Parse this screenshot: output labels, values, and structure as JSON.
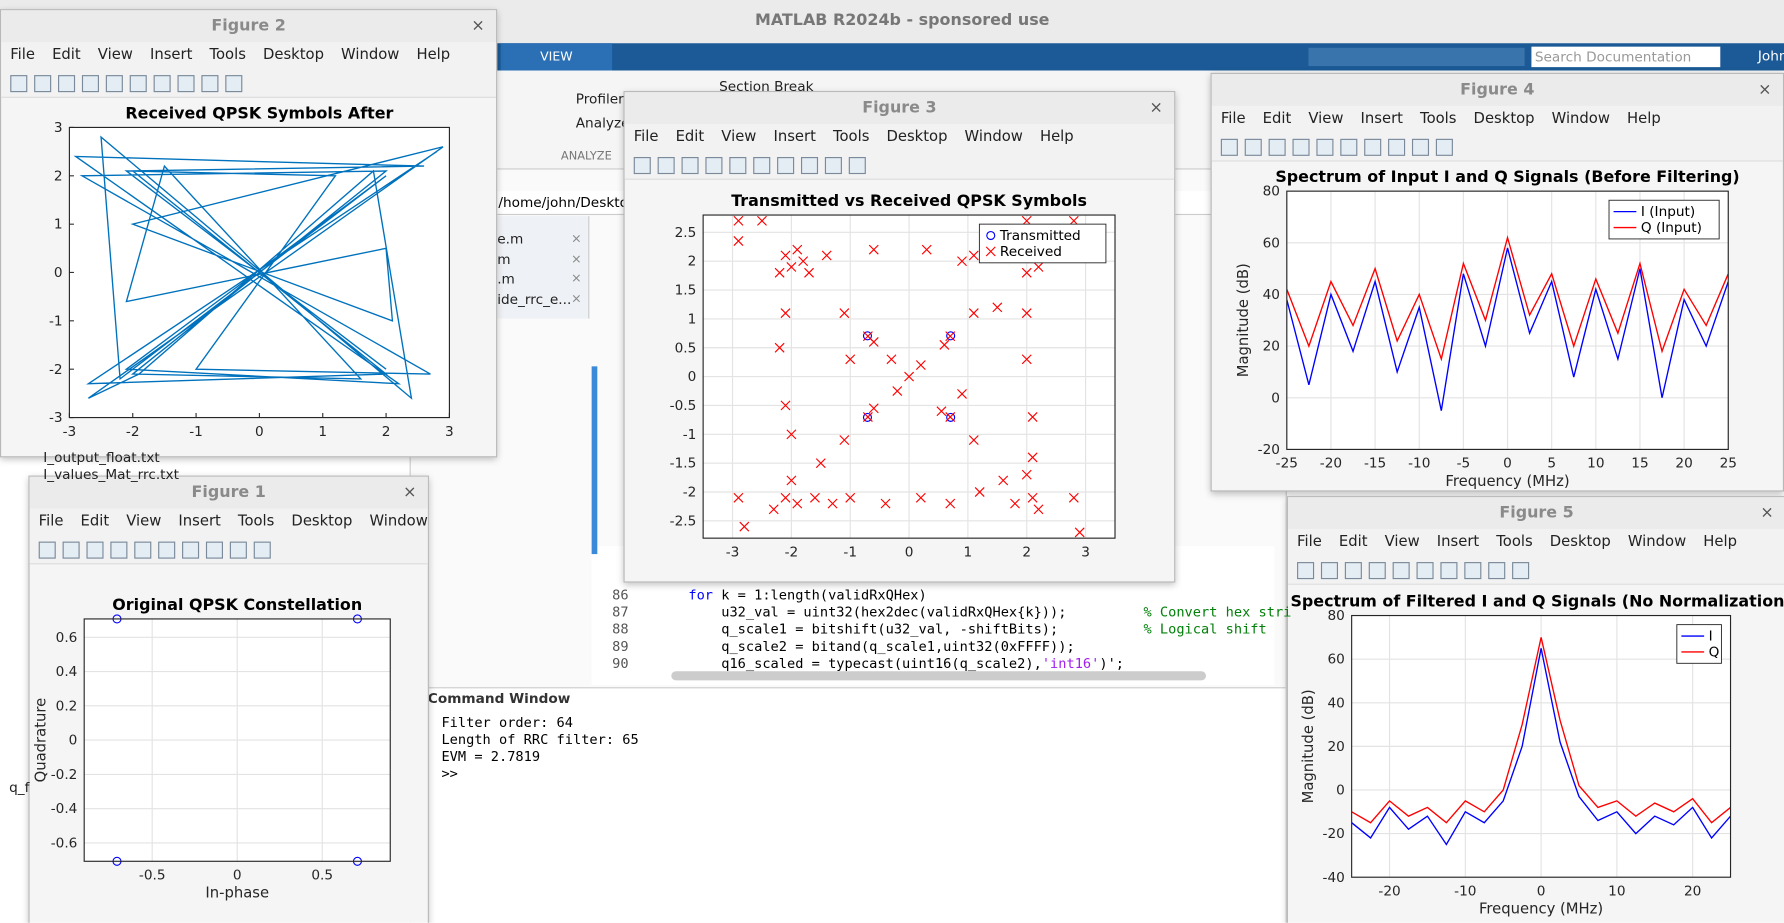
{
  "app": {
    "title": "MATLAB R2024b - sponsored use",
    "tab": "VIEW",
    "search_placeholder": "Search Documentation",
    "user": "John",
    "section_break": "Section Break",
    "profiler": "Profiler",
    "analyze": "Analyze",
    "group_label": "ANALYZE",
    "path": "/home/john/Deskto"
  },
  "file_tabs": [
    "e.m",
    "m",
    ".m",
    "ide_rrc_e..."
  ],
  "files": [
    "I_output_float.txt",
    "I_values_Mat_rrc.txt",
    "q_f"
  ],
  "editor": {
    "lines": [
      {
        "num": "86",
        "tokens": [
          {
            "t": "for",
            "k": "keyword"
          },
          {
            "t": " k = 1:length(validRxQHex)",
            "k": "code"
          }
        ]
      },
      {
        "num": "87",
        "tokens": [
          {
            "t": "    u32_val = uint32(hex2dec(validRxQHex{k}));",
            "k": "code"
          }
        ],
        "comment": "% Convert hex stri"
      },
      {
        "num": "88",
        "tokens": [
          {
            "t": "    q_scale1 = bitshift(u32_val, -shiftBits);",
            "k": "code"
          }
        ],
        "comment": "% Logical shift"
      },
      {
        "num": "89",
        "tokens": [
          {
            "t": "    q_scale2 = bitand(q_scale1,uint32(0xFFFF));",
            "k": "code"
          }
        ]
      },
      {
        "num": "90",
        "tokens": [
          {
            "t": "    q16_scaled = typecast(uint16(q_scale2),",
            "k": "code"
          },
          {
            "t": "'int16'",
            "k": "string"
          },
          {
            "t": ")';",
            "k": "code"
          }
        ]
      }
    ]
  },
  "command_window": {
    "title": "Command Window",
    "lines": [
      "Filter order: 64",
      "Length of RRC filter: 65",
      "EVM = 2.7819"
    ],
    "prompt": ">>"
  },
  "menu": [
    "File",
    "Edit",
    "View",
    "Insert",
    "Tools",
    "Desktop",
    "Window",
    "Help"
  ],
  "figures": [
    {
      "window_title": "Figure 1",
      "chart": {
        "type": "scatter",
        "title": "Original QPSK Constellation",
        "x_label": "In-phase",
        "y_label": "Quadrature",
        "xlim": [
          -0.9,
          0.9
        ],
        "ylim": [
          -0.7071,
          0.7071
        ],
        "xticks": [
          -0.5,
          0,
          0.5
        ],
        "yticks": [
          -0.6,
          -0.4,
          -0.2,
          0,
          0.2,
          0.4,
          0.6
        ],
        "grid": true,
        "series": [
          {
            "color": "#0000ff",
            "marker": "o",
            "x": [
              -0.7071,
              -0.7071,
              0.7071,
              0.7071
            ],
            "values": [
              0.7071,
              -0.7071,
              0.7071,
              -0.7071
            ]
          }
        ]
      }
    },
    {
      "window_title": "Figure 2",
      "chart": {
        "type": "line",
        "title": "Received QPSK Symbols After",
        "xlim": [
          -3,
          3
        ],
        "ylim": [
          -3,
          3
        ],
        "xticks": [
          -3,
          -2,
          -1,
          0,
          1,
          2,
          3
        ],
        "yticks": [
          -3,
          -2,
          -1,
          0,
          1,
          2,
          3
        ],
        "grid": false,
        "x": [
          2.8,
          -2.7,
          2.0,
          -2.0,
          2.6,
          -2.9,
          2.2,
          -2.1,
          2.0,
          -2.2,
          -2.5,
          2.4,
          1.8,
          -1.9,
          -2.7,
          2.9,
          -2.0,
          2.1,
          2.0,
          -2.1,
          -1.5,
          1.6,
          -2.0,
          2.0,
          -2.8,
          2.7,
          -1.0,
          1.2,
          -2.1,
          2.0
        ],
        "series": [
          {
            "color": "#0072bd",
            "values": [
              2.5,
              -2.3,
              -2.1,
              2.1,
              2.2,
              2.4,
              -2.3,
              -2.0,
              2.0,
              -2.2,
              2.8,
              -2.6,
              2.1,
              -2.1,
              -2.6,
              2.6,
              1.0,
              -1.0,
              0.5,
              -0.6,
              2.2,
              -2.2,
              -2.1,
              2.1,
              2.0,
              -2.1,
              -2.0,
              2.0,
              2.1,
              -2.0
            ]
          }
        ]
      }
    },
    {
      "window_title": "Figure 3",
      "chart": {
        "type": "scatter",
        "title": "Transmitted vs Received QPSK Symbols",
        "xlim": [
          -3.5,
          3.5
        ],
        "ylim": [
          -2.8,
          2.8
        ],
        "xticks": [
          -3,
          -2,
          -1,
          0,
          1,
          2,
          3
        ],
        "yticks": [
          -2.5,
          -2,
          -1.5,
          -1,
          -0.5,
          0,
          0.5,
          1,
          1.5,
          2,
          2.5
        ],
        "grid": true,
        "legend": "northeast",
        "series": [
          {
            "name": "Transmitted",
            "color": "#0000ff",
            "marker": "o",
            "x": [
              -0.7071,
              0.7071,
              -0.7071,
              0.7071
            ],
            "values": [
              0.7071,
              0.7071,
              -0.7071,
              -0.7071
            ]
          },
          {
            "name": "Received",
            "color": "#ff0000",
            "marker": "x",
            "x": [
              -2.1,
              -1.9,
              -2.0,
              -2.2,
              -1.8,
              -1.4,
              -1.7,
              -2.9,
              -2.9,
              -2.5,
              2.1,
              1.9,
              2.0,
              2.2,
              1.1,
              0.9,
              0.3,
              -0.6,
              2.8,
              2.0,
              -2.1,
              -1.9,
              -2.0,
              -1.6,
              -1.3,
              -2.8,
              -2.9,
              -2.3,
              -1.0,
              -0.4,
              2.1,
              1.8,
              2.0,
              2.2,
              1.2,
              0.7,
              2.8,
              2.9,
              0.2,
              1.6,
              -0.7,
              -0.6,
              0.7,
              0.6,
              -0.7,
              -0.6,
              0.7,
              0.55,
              -0.3,
              0,
              0.2,
              -0.2,
              -1.1,
              1.1,
              -1.1,
              1.1,
              -1.5,
              1.5,
              -2.1,
              -2.1,
              -2.0,
              -2.2,
              2.0,
              2.1,
              2.0,
              2.1,
              -1.0,
              0.9
            ],
            "values": [
              2.1,
              2.2,
              1.9,
              1.8,
              2.0,
              2.1,
              1.8,
              2.7,
              2.35,
              2.7,
              2.1,
              2.2,
              1.8,
              1.9,
              2.1,
              2.0,
              2.2,
              2.2,
              2.7,
              2.7,
              -2.1,
              -2.2,
              -1.8,
              -2.1,
              -2.2,
              -2.6,
              -2.1,
              -2.3,
              -2.1,
              -2.2,
              -2.1,
              -2.2,
              -1.7,
              -2.3,
              -2.0,
              -2.2,
              -2.1,
              -2.7,
              -2.1,
              -1.8,
              0.7,
              0.6,
              0.7,
              0.55,
              -0.7,
              -0.55,
              -0.7,
              -0.6,
              0.3,
              0,
              0.2,
              -0.25,
              -1.1,
              -1.1,
              1.1,
              1.1,
              -1.5,
              1.2,
              1.1,
              -0.5,
              -1.0,
              0.5,
              1.1,
              -0.7,
              0.3,
              -1.4,
              0.3,
              -0.3
            ]
          }
        ]
      }
    },
    {
      "window_title": "Figure 4",
      "chart": {
        "type": "line",
        "title": "Spectrum of Input I and Q Signals (Before Filtering)",
        "x_label": "Frequency (MHz)",
        "y_label": "Magnitude (dB)",
        "xlim": [
          -25,
          25
        ],
        "ylim": [
          -20,
          80
        ],
        "xticks": [
          -25,
          -20,
          -15,
          -10,
          -5,
          0,
          5,
          10,
          15,
          20,
          25
        ],
        "yticks": [
          -20,
          0,
          20,
          40,
          60,
          80
        ],
        "grid": true,
        "legend": "northeast",
        "x": [
          -25,
          -22.5,
          -20,
          -17.5,
          -15,
          -12.5,
          -10,
          -7.5,
          -5,
          -2.5,
          0,
          2.5,
          5,
          7.5,
          10,
          12.5,
          15,
          17.5,
          20,
          22.5,
          25
        ],
        "series": [
          {
            "name": "I (Input)",
            "color": "#0000ff",
            "values": [
              38,
              5,
              40,
              18,
              45,
              10,
              35,
              -5,
              48,
              20,
              58,
              25,
              45,
              8,
              42,
              15,
              50,
              0,
              38,
              20,
              45
            ]
          },
          {
            "name": "Q (Input)",
            "color": "#ff0000",
            "values": [
              42,
              20,
              45,
              28,
              50,
              22,
              40,
              15,
              52,
              30,
              62,
              32,
              48,
              20,
              46,
              25,
              52,
              18,
              42,
              28,
              48
            ]
          }
        ]
      }
    },
    {
      "window_title": "Figure 5",
      "chart": {
        "type": "line",
        "title": "Spectrum of Filtered I and Q Signals (No Normalization)",
        "x_label": "Frequency (MHz)",
        "y_label": "Magnitude (dB)",
        "xlim": [
          -25,
          25
        ],
        "ylim": [
          -40,
          80
        ],
        "xticks": [
          -20,
          -10,
          0,
          10,
          20
        ],
        "yticks": [
          -40,
          -20,
          0,
          20,
          40,
          60,
          80
        ],
        "grid": true,
        "legend": "northeast",
        "x": [
          -25,
          -22.5,
          -20,
          -17.5,
          -15,
          -12.5,
          -10,
          -7.5,
          -5,
          -2.5,
          0,
          2.5,
          5,
          7.5,
          10,
          12.5,
          15,
          17.5,
          20,
          22.5,
          25
        ],
        "series": [
          {
            "name": "I",
            "color": "#0000ff",
            "values": [
              -15,
              -22,
              -8,
              -18,
              -12,
              -25,
              -10,
              -15,
              -5,
              20,
              65,
              22,
              -3,
              -14,
              -10,
              -20,
              -12,
              -16,
              -8,
              -22,
              -12
            ]
          },
          {
            "name": "Q",
            "color": "#ff0000",
            "values": [
              -10,
              -15,
              -5,
              -12,
              -8,
              -15,
              -5,
              -10,
              0,
              30,
              70,
              32,
              2,
              -8,
              -5,
              -12,
              -6,
              -10,
              -4,
              -15,
              -8
            ]
          }
        ]
      }
    }
  ]
}
